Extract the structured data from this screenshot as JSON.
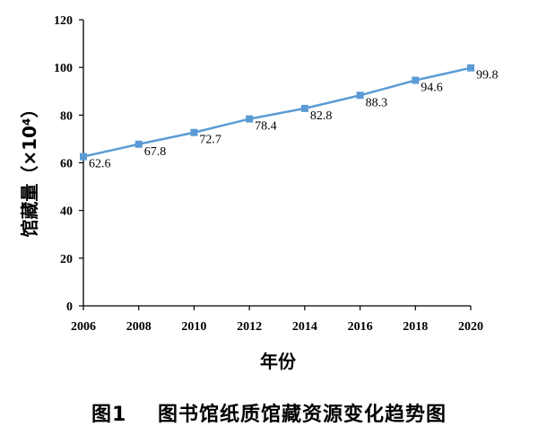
{
  "figure_caption": "图1    图书馆纸质馆藏资源变化趋势图",
  "chart_data": {
    "type": "line",
    "x": [
      "2006",
      "2008",
      "2010",
      "2012",
      "2014",
      "2016",
      "2018",
      "2020"
    ],
    "series": [
      {
        "values": [
          62.6,
          67.8,
          72.7,
          78.4,
          82.8,
          88.3,
          94.6,
          99.8
        ]
      }
    ],
    "data_labels": [
      "62.6",
      "67.8",
      "72.7",
      "78.4",
      "82.8",
      "88.3",
      "94.6",
      "99.8"
    ],
    "xlabel": "年份",
    "ylabel": "馆藏量（×10⁴）",
    "ylim": [
      0,
      120
    ],
    "yticks": [
      "0",
      "20",
      "40",
      "60",
      "80",
      "100",
      "120"
    ],
    "grid": false,
    "marker": "square",
    "color": "#5b9bd5"
  }
}
